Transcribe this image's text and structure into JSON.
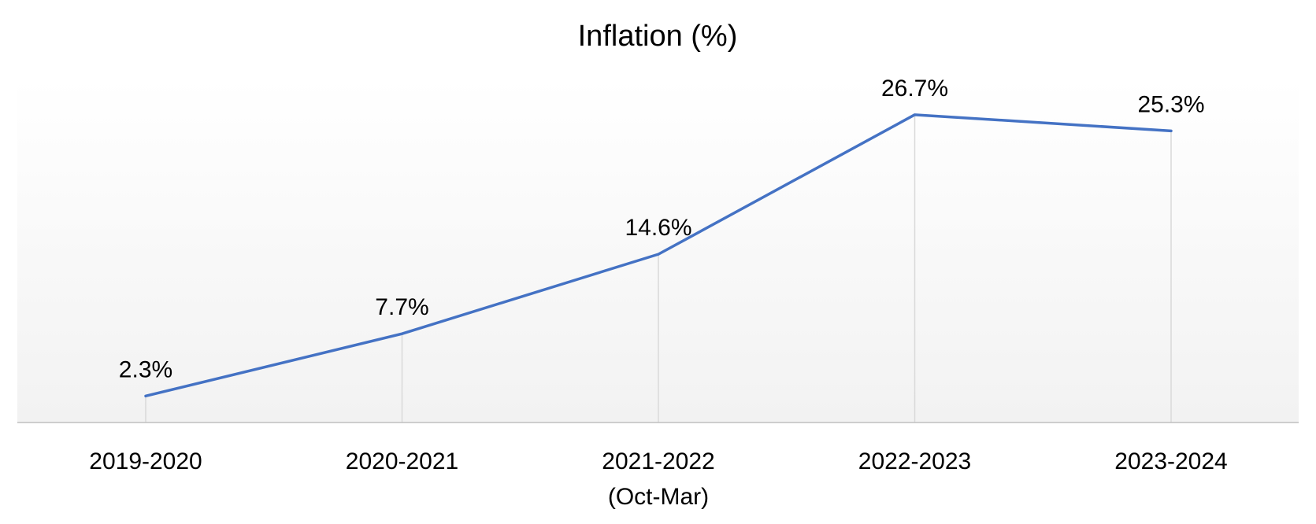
{
  "chart_data": {
    "type": "line",
    "title": "Inflation (%)",
    "categories": [
      "2019-2020",
      "2020-2021",
      "2021-2022\n(Oct-Mar)",
      "2022-2023",
      "2023-2024"
    ],
    "series": [
      {
        "values": [
          2.3,
          7.7,
          14.6,
          26.7,
          25.3
        ]
      }
    ],
    "data_labels": [
      "2.3%",
      "7.7%",
      "14.6%",
      "26.7%",
      "25.3%"
    ],
    "ylim": [
      0,
      30
    ],
    "grid": "vertical drop lines only",
    "legend": "none",
    "colors": {
      "line": "#4472C4",
      "drop_line": "#d9d9d9",
      "axis": "#bfbfbf",
      "background_top": "#ffffff",
      "background_bottom": "#f2f2f2"
    }
  }
}
